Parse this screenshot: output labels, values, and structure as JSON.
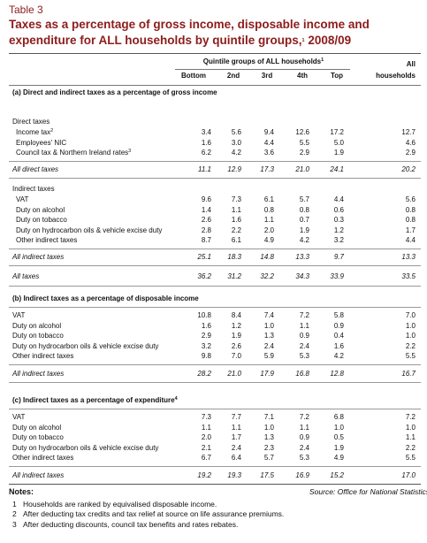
{
  "header": {
    "label": "Table 3",
    "title_line1": "Taxes as a percentage of gross income, disposable income and",
    "title_line2": "expenditure for ALL households by quintile groups,",
    "title_note": "1",
    "title_year": "2008/09"
  },
  "columns": {
    "group_label": "Quintile groups of ALL households",
    "group_note": "1",
    "quintiles": [
      "Bottom",
      "2nd",
      "3rd",
      "4th",
      "Top"
    ],
    "all_label": [
      "All",
      "households"
    ]
  },
  "sections": [
    {
      "heading": "(a) Direct and indirect taxes as a percentage of gross income",
      "groups": [
        {
          "label": "Direct taxes",
          "rows": [
            {
              "label": "Income tax",
              "note": "2",
              "values": [
                "3.4",
                "5.6",
                "9.4",
                "12.6",
                "17.2",
                "12.7"
              ]
            },
            {
              "label": "Employees' NIC",
              "values": [
                "1.6",
                "3.0",
                "4.4",
                "5.5",
                "5.0",
                "4.6"
              ]
            },
            {
              "label": "Council tax & Northern Ireland rates",
              "note": "3",
              "values": [
                "6.2",
                "4.2",
                "3.6",
                "2.9",
                "1.9",
                "2.9"
              ]
            }
          ],
          "total": {
            "label": "All direct taxes",
            "values": [
              "11.1",
              "12.9",
              "17.3",
              "21.0",
              "24.1",
              "20.2"
            ]
          }
        },
        {
          "label": "Indirect taxes",
          "rows": [
            {
              "label": "VAT",
              "values": [
                "9.6",
                "7.3",
                "6.1",
                "5.7",
                "4.4",
                "5.6"
              ]
            },
            {
              "label": "Duty on alcohol",
              "values": [
                "1.4",
                "1.1",
                "0.8",
                "0.8",
                "0.6",
                "0.8"
              ]
            },
            {
              "label": "Duty on tobacco",
              "values": [
                "2.6",
                "1.6",
                "1.1",
                "0.7",
                "0.3",
                "0.8"
              ]
            },
            {
              "label": "Duty on hydrocarbon oils & vehicle excise duty",
              "values": [
                "2.8",
                "2.2",
                "2.0",
                "1.9",
                "1.2",
                "1.7"
              ]
            },
            {
              "label": "Other indirect taxes",
              "values": [
                "8.7",
                "6.1",
                "4.9",
                "4.2",
                "3.2",
                "4.4"
              ]
            }
          ],
          "total": {
            "label": "All indirect taxes",
            "values": [
              "25.1",
              "18.3",
              "14.8",
              "13.3",
              "9.7",
              "13.3"
            ]
          }
        }
      ],
      "total": {
        "label": "All taxes",
        "values": [
          "36.2",
          "31.2",
          "32.2",
          "34.3",
          "33.9",
          "33.5"
        ]
      }
    },
    {
      "heading": "(b) Indirect taxes as a percentage of disposable income",
      "rows": [
        {
          "label": "VAT",
          "values": [
            "10.8",
            "8.4",
            "7.4",
            "7.2",
            "5.8",
            "7.0"
          ]
        },
        {
          "label": "Duty on alcohol",
          "values": [
            "1.6",
            "1.2",
            "1.0",
            "1.1",
            "0.9",
            "1.0"
          ]
        },
        {
          "label": "Duty on tobacco",
          "values": [
            "2.9",
            "1.9",
            "1.3",
            "0.9",
            "0.4",
            "1.0"
          ]
        },
        {
          "label": "Duty on hydrocarbon oils & vehicle excise duty",
          "values": [
            "3.2",
            "2.6",
            "2.4",
            "2.4",
            "1.6",
            "2.2"
          ]
        },
        {
          "label": "Other indirect taxes",
          "values": [
            "9.8",
            "7.0",
            "5.9",
            "5.3",
            "4.2",
            "5.5"
          ]
        }
      ],
      "total": {
        "label": "All indirect taxes",
        "values": [
          "28.2",
          "21.0",
          "17.9",
          "16.8",
          "12.8",
          "16.7"
        ]
      }
    },
    {
      "heading": "(c) Indirect taxes as a percentage of expenditure",
      "heading_note": "4",
      "rows": [
        {
          "label": "VAT",
          "values": [
            "7.3",
            "7.7",
            "7.1",
            "7.2",
            "6.8",
            "7.2"
          ]
        },
        {
          "label": "Duty on alcohol",
          "values": [
            "1.1",
            "1.1",
            "1.0",
            "1.1",
            "1.0",
            "1.0"
          ]
        },
        {
          "label": "Duty on tobacco",
          "values": [
            "2.0",
            "1.7",
            "1.3",
            "0.9",
            "0.5",
            "1.1"
          ]
        },
        {
          "label": "Duty on hydrocarbon oils & vehicle excise duty",
          "values": [
            "2.1",
            "2.4",
            "2.3",
            "2.4",
            "1.9",
            "2.2"
          ]
        },
        {
          "label": "Other indirect taxes",
          "values": [
            "6.7",
            "6.4",
            "5.7",
            "5.3",
            "4.9",
            "5.5"
          ]
        }
      ],
      "total": {
        "label": "All indirect taxes",
        "values": [
          "19.2",
          "19.3",
          "17.5",
          "16.9",
          "15.2",
          "17.0"
        ]
      }
    }
  ],
  "notes": {
    "title": "Notes:",
    "source": "Source: Office for National Statistics",
    "items": [
      {
        "number": "1",
        "text": "Households are ranked by equivalised disposable income."
      },
      {
        "number": "2",
        "text": "After deducting tax credits and tax relief at source on life assurance premiums."
      },
      {
        "number": "3",
        "text": "After deducting discounts, council tax benefits and rates rebates."
      }
    ]
  }
}
